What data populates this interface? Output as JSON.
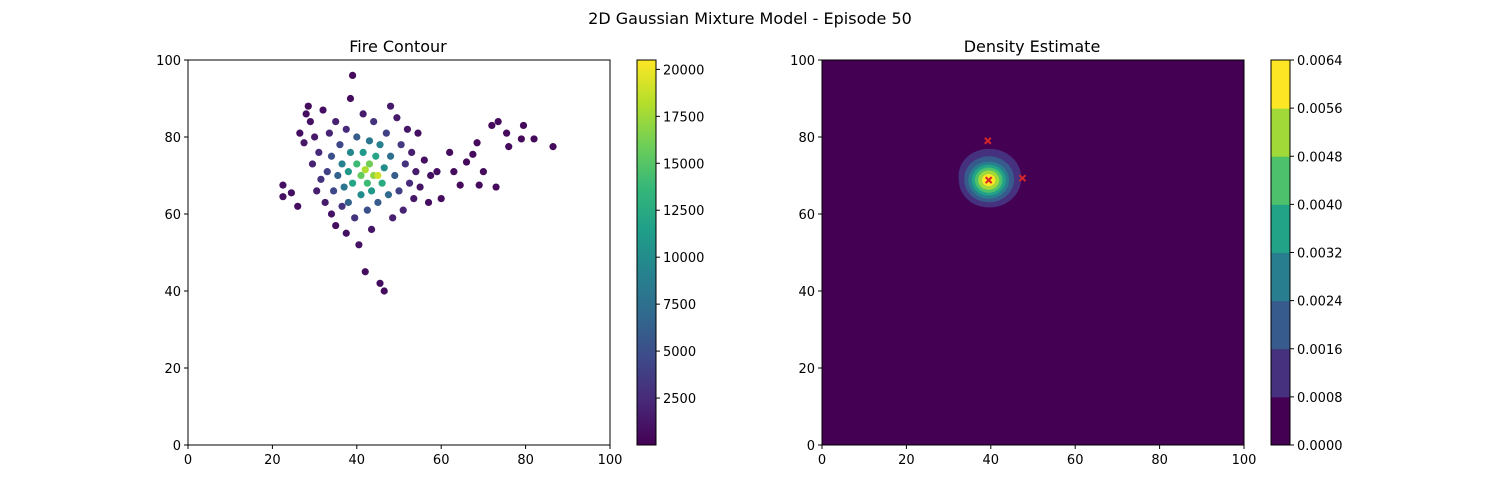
{
  "suptitle": "2D Gaussian Mixture Model - Episode 50",
  "chart_data": [
    {
      "type": "scatter",
      "title": "Fire Contour",
      "xlim": [
        0,
        100
      ],
      "ylim": [
        0,
        100
      ],
      "xticks": [
        "0",
        "20",
        "40",
        "60",
        "80",
        "100"
      ],
      "yticks": [
        "0",
        "20",
        "40",
        "60",
        "80",
        "100"
      ],
      "colormap": "viridis",
      "colorbar": {
        "range": [
          0,
          20500
        ],
        "ticks": [
          "2500",
          "5000",
          "7500",
          "10000",
          "12500",
          "15000",
          "17500",
          "20000"
        ]
      },
      "points": [
        [
          22.5,
          64.5,
          800
        ],
        [
          22.5,
          67.5,
          900
        ],
        [
          24.5,
          65.5,
          800
        ],
        [
          26,
          62,
          700
        ],
        [
          26.5,
          81,
          800
        ],
        [
          27.5,
          78.5,
          1200
        ],
        [
          28,
          86,
          700
        ],
        [
          28.5,
          88,
          600
        ],
        [
          29,
          84,
          900
        ],
        [
          29.5,
          73,
          2000
        ],
        [
          30,
          80,
          1500
        ],
        [
          30.5,
          66,
          1800
        ],
        [
          31,
          76,
          2500
        ],
        [
          31.5,
          69,
          3000
        ],
        [
          32,
          87,
          700
        ],
        [
          32.5,
          63,
          1500
        ],
        [
          33,
          71,
          4000
        ],
        [
          33.5,
          81,
          2000
        ],
        [
          34,
          60,
          1000
        ],
        [
          34,
          75,
          5000
        ],
        [
          34.5,
          66,
          4500
        ],
        [
          35,
          84,
          1800
        ],
        [
          35,
          57,
          700
        ],
        [
          35.5,
          70,
          6500
        ],
        [
          36,
          78,
          4500
        ],
        [
          36.5,
          62,
          3000
        ],
        [
          36.5,
          73,
          9000
        ],
        [
          37,
          67,
          8000
        ],
        [
          37.5,
          82,
          2500
        ],
        [
          37.5,
          55,
          800
        ],
        [
          38,
          71,
          11000
        ],
        [
          38,
          63,
          6500
        ],
        [
          38.5,
          76,
          9500
        ],
        [
          38.5,
          90,
          600
        ],
        [
          39,
          96,
          500
        ],
        [
          39,
          68,
          12000
        ],
        [
          39.5,
          59,
          3000
        ],
        [
          40,
          73,
          14000
        ],
        [
          40,
          80,
          6000
        ],
        [
          40.5,
          52,
          1000
        ],
        [
          41,
          70,
          15500
        ],
        [
          41,
          65,
          10000
        ],
        [
          41.5,
          76,
          11000
        ],
        [
          41.5,
          86,
          1500
        ],
        [
          42,
          71.5,
          18000
        ],
        [
          42,
          45,
          700
        ],
        [
          42.5,
          68,
          14000
        ],
        [
          42.5,
          61,
          5000
        ],
        [
          43,
          73,
          16000
        ],
        [
          43,
          79,
          8000
        ],
        [
          43.5,
          66,
          11000
        ],
        [
          43.5,
          56,
          1200
        ],
        [
          44,
          70,
          17000
        ],
        [
          44,
          84,
          3000
        ],
        [
          44.5,
          75,
          12000
        ],
        [
          45,
          70,
          19000
        ],
        [
          45,
          63,
          6000
        ],
        [
          45.5,
          78,
          9000
        ],
        [
          45.5,
          42,
          700
        ],
        [
          46,
          68,
          12500
        ],
        [
          46.5,
          40,
          600
        ],
        [
          46.5,
          72,
          10000
        ],
        [
          47,
          81,
          4000
        ],
        [
          47.5,
          65,
          7000
        ],
        [
          48,
          88,
          1500
        ],
        [
          48,
          75,
          7500
        ],
        [
          48.5,
          59,
          1800
        ],
        [
          49,
          70,
          6000
        ],
        [
          49.5,
          85,
          1500
        ],
        [
          50,
          66,
          4000
        ],
        [
          50.5,
          78,
          3500
        ],
        [
          51,
          61,
          2000
        ],
        [
          51.5,
          73,
          3000
        ],
        [
          52,
          82,
          1200
        ],
        [
          52.5,
          68,
          2500
        ],
        [
          53,
          76,
          1800
        ],
        [
          53.5,
          64,
          1200
        ],
        [
          54,
          71,
          1600
        ],
        [
          54.5,
          81,
          900
        ],
        [
          55,
          67,
          1100
        ],
        [
          56,
          74,
          900
        ],
        [
          57,
          63,
          700
        ],
        [
          57.5,
          70,
          800
        ],
        [
          59,
          71,
          700
        ],
        [
          60,
          64,
          600
        ],
        [
          62,
          76,
          600
        ],
        [
          63,
          71,
          600
        ],
        [
          64.5,
          67.5,
          500
        ],
        [
          66,
          73.5,
          500
        ],
        [
          67.5,
          75.5,
          500
        ],
        [
          68.5,
          78.5,
          500
        ],
        [
          69,
          67.5,
          500
        ],
        [
          70,
          71,
          500
        ],
        [
          72,
          83,
          500
        ],
        [
          73,
          67,
          500
        ],
        [
          73.5,
          84,
          500
        ],
        [
          75.5,
          81,
          500
        ],
        [
          76,
          77.5,
          500
        ],
        [
          79,
          79.5,
          500
        ],
        [
          79.5,
          83,
          500
        ],
        [
          82,
          79.5,
          500
        ],
        [
          86.5,
          77.5,
          500
        ]
      ]
    },
    {
      "type": "filled-contour",
      "title": "Density Estimate",
      "xlim": [
        0,
        100
      ],
      "ylim": [
        0,
        100
      ],
      "xticks": [
        "0",
        "20",
        "40",
        "60",
        "80",
        "100"
      ],
      "yticks": [
        "0",
        "20",
        "40",
        "60",
        "80",
        "100"
      ],
      "colormap": "viridis",
      "levels": [
        0.0,
        0.0008,
        0.0016,
        0.0024,
        0.0032,
        0.004,
        0.0048,
        0.0056,
        0.0064
      ],
      "colorbar": {
        "ticks": [
          "0.0000",
          "0.0008",
          "0.0016",
          "0.0024",
          "0.0032",
          "0.0040",
          "0.0048",
          "0.0056",
          "0.0064"
        ]
      },
      "peak": {
        "x": 39.5,
        "y": 68.8,
        "density": 0.0062
      },
      "means": [
        {
          "x": 39.5,
          "y": 68.8
        },
        {
          "x": 39.3,
          "y": 79
        },
        {
          "x": 47.5,
          "y": 69.3
        }
      ],
      "marker": "x",
      "marker_color": "#d62728"
    }
  ]
}
